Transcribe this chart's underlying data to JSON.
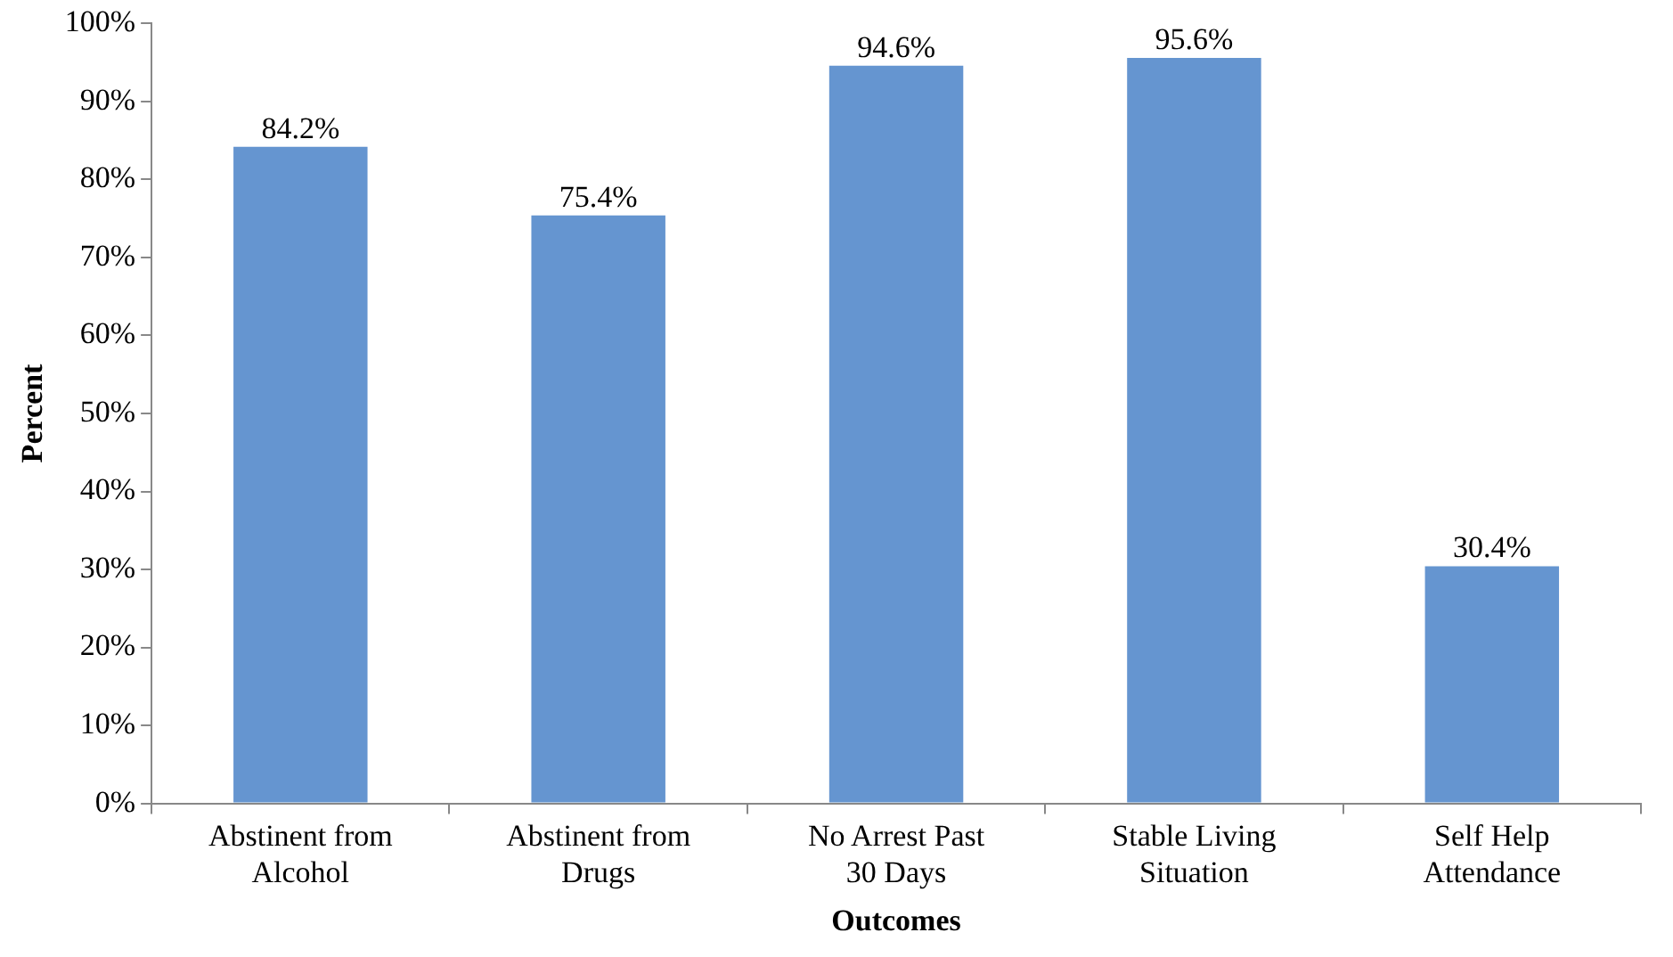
{
  "chart_data": {
    "type": "bar",
    "xlabel": "Outcomes",
    "ylabel": "Percent",
    "categories": [
      "Abstinent from Alcohol",
      "Abstinent from Drugs",
      "No Arrest Past 30 Days",
      "Stable Living Situation",
      "Self Help Attendance"
    ],
    "values": [
      84.2,
      75.4,
      94.6,
      95.6,
      30.4
    ],
    "value_labels": [
      "84.2%",
      "75.4%",
      "94.6%",
      "95.6%",
      "30.4%"
    ],
    "color": "#6595d0",
    "ylim": [
      0,
      100
    ],
    "yticks": [
      {
        "value": 0,
        "label": "0%"
      },
      {
        "value": 10,
        "label": "10%"
      },
      {
        "value": 20,
        "label": "20%"
      },
      {
        "value": 30,
        "label": "30%"
      },
      {
        "value": 40,
        "label": "40%"
      },
      {
        "value": 50,
        "label": "50%"
      },
      {
        "value": 60,
        "label": "60%"
      },
      {
        "value": 70,
        "label": "70%"
      },
      {
        "value": 80,
        "label": "80%"
      },
      {
        "value": 90,
        "label": "90%"
      },
      {
        "value": 100,
        "label": "100%"
      }
    ],
    "grid": false,
    "legend": false
  }
}
